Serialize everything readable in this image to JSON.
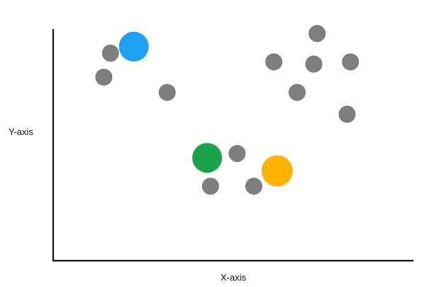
{
  "chart_data": {
    "type": "scatter",
    "xlabel": "X-axis",
    "ylabel": "Y-axis",
    "colors": {
      "neutral": "#7f7f7f",
      "blue": "#1da1f2",
      "green": "#1aa34a",
      "orange": "#ffb300"
    },
    "points": [
      {
        "role": "neutral",
        "x": 0.14,
        "y": 0.88
      },
      {
        "role": "neutral",
        "x": 0.12,
        "y": 0.77
      },
      {
        "role": "neutral",
        "x": 0.31,
        "y": 0.7
      },
      {
        "role": "neutral",
        "x": 0.63,
        "y": 0.84
      },
      {
        "role": "neutral",
        "x": 0.76,
        "y": 0.97
      },
      {
        "role": "neutral",
        "x": 0.75,
        "y": 0.83
      },
      {
        "role": "neutral",
        "x": 0.86,
        "y": 0.84
      },
      {
        "role": "neutral",
        "x": 0.7,
        "y": 0.7
      },
      {
        "role": "neutral",
        "x": 0.85,
        "y": 0.6
      },
      {
        "role": "neutral",
        "x": 0.52,
        "y": 0.42
      },
      {
        "role": "neutral",
        "x": 0.44,
        "y": 0.27
      },
      {
        "role": "neutral",
        "x": 0.57,
        "y": 0.27
      },
      {
        "role": "blue",
        "x": 0.21,
        "y": 0.91
      },
      {
        "role": "green",
        "x": 0.43,
        "y": 0.4
      },
      {
        "role": "orange",
        "x": 0.64,
        "y": 0.34
      }
    ]
  }
}
